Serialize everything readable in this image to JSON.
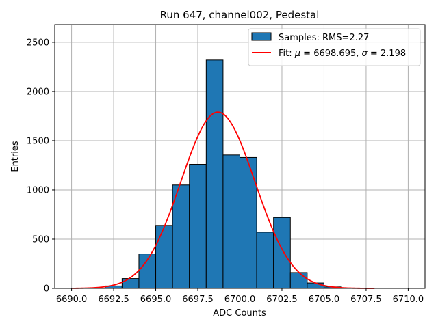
{
  "chart_data": {
    "type": "bar",
    "title": "Run 647, channel002, Pedestal",
    "xlabel": "ADC Counts",
    "ylabel": "Entries",
    "xlim": [
      6689.0,
      6711.0
    ],
    "ylim": [
      0,
      2680
    ],
    "xticks": [
      6690.0,
      6692.5,
      6695.0,
      6697.5,
      6700.0,
      6702.5,
      6705.0,
      6707.5,
      6710.0
    ],
    "xtick_labels": [
      "6690.0",
      "6692.5",
      "6695.0",
      "6697.5",
      "6700.0",
      "6702.5",
      "6705.0",
      "6707.5",
      "6710.0"
    ],
    "yticks": [
      0,
      500,
      1000,
      1500,
      2000,
      2500
    ],
    "ytick_labels": [
      "0",
      "500",
      "1000",
      "1500",
      "2000",
      "2500"
    ],
    "grid": true,
    "legend_position": "top-right",
    "bin_width": 1.0,
    "series": [
      {
        "name": "Samples: RMS=2.27",
        "kind": "histogram",
        "color": "#1f77b4",
        "edge_color": "#000000",
        "bin_left_edges": [
          6692,
          6693,
          6694,
          6695,
          6696,
          6697,
          6698,
          6699,
          6700,
          6701,
          6702,
          6703,
          6704,
          6705
        ],
        "values": [
          25,
          100,
          350,
          640,
          1050,
          1260,
          2320,
          1355,
          1330,
          570,
          720,
          160,
          55,
          15
        ]
      },
      {
        "name_prefix": "Fit: ",
        "name_mu_symbol": "μ",
        "name_mu_text": " = 6698.695, ",
        "name_sigma_symbol": "σ",
        "name_sigma_text": " = 2.198",
        "kind": "gaussian-fit",
        "color": "#ff0000",
        "mu": 6698.695,
        "sigma": 2.198,
        "amplitude": 1790,
        "x_range": [
          6690.0,
          6708.0
        ]
      }
    ]
  }
}
